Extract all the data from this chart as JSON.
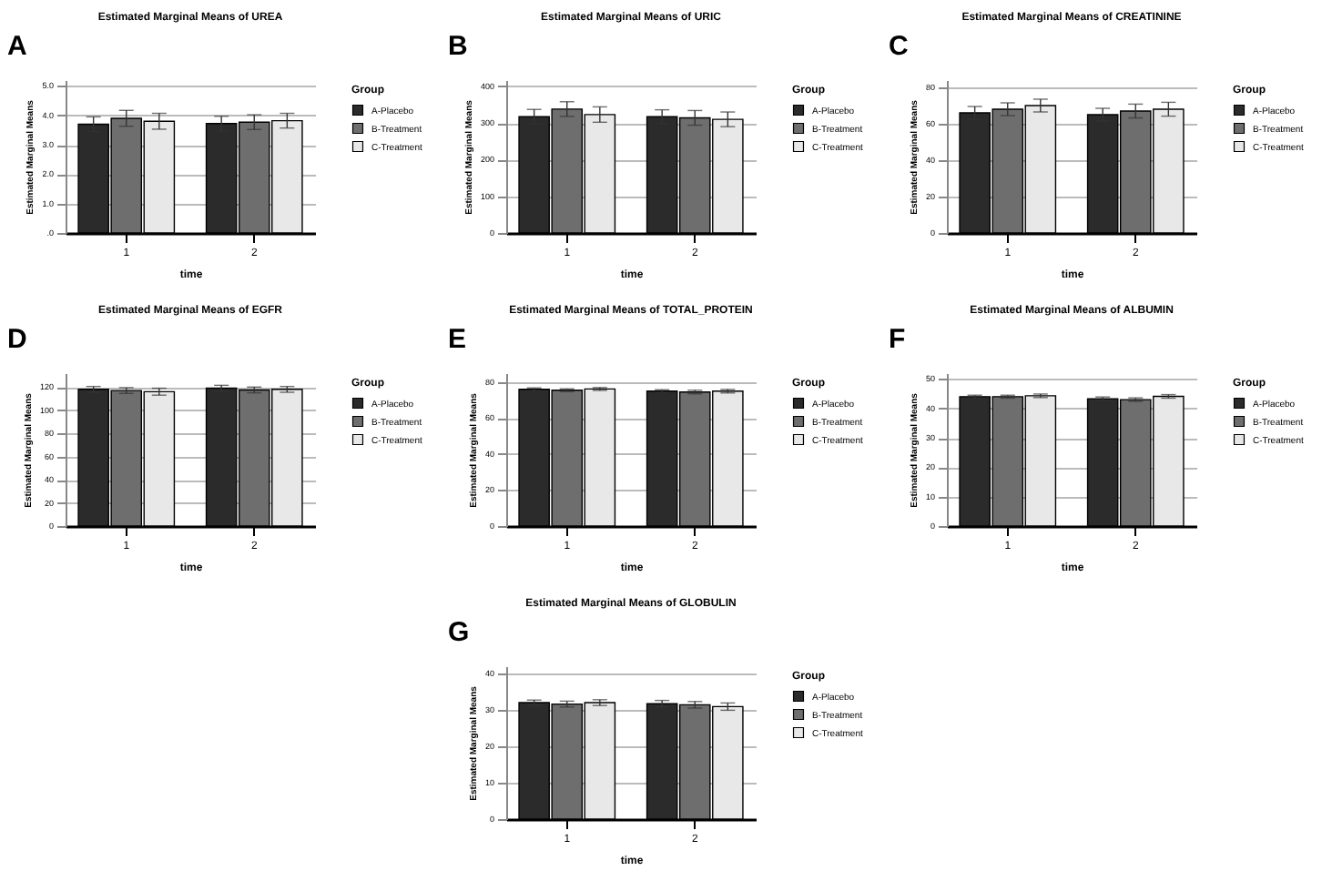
{
  "chart_data": [
    {
      "type": "bar",
      "title": "Estimated Marginal Means of UREA",
      "xlabel": "time",
      "ylabel": "Estimated Marginal Means",
      "legend_title": "Group",
      "annotations": [
        "A"
      ],
      "categories": [
        "1",
        "2"
      ],
      "ylim": [
        0,
        5.2
      ],
      "yticks": [
        {
          "value": 0,
          "label": ".0"
        },
        {
          "value": 1,
          "label": "1.0"
        },
        {
          "value": 2,
          "label": "2.0"
        },
        {
          "value": 3,
          "label": "3.0"
        },
        {
          "value": 4,
          "label": "4.0"
        },
        {
          "value": 5,
          "label": "5.0"
        }
      ],
      "grid": "y",
      "legend": "top right",
      "series": [
        {
          "name": "A-Placebo",
          "color": "#2b2b2b",
          "values": [
            3.7,
            3.72
          ],
          "errors": [
            0.25,
            0.25
          ]
        },
        {
          "name": "B-Treatment",
          "color": "#6e6e6e",
          "values": [
            3.9,
            3.77
          ],
          "errors": [
            0.27,
            0.25
          ]
        },
        {
          "name": "C-Treatment",
          "color": "#e8e8e8",
          "values": [
            3.8,
            3.82
          ],
          "errors": [
            0.27,
            0.25
          ]
        }
      ]
    },
    {
      "type": "bar",
      "title": "Estimated Marginal Means of URIC",
      "xlabel": "time",
      "ylabel": "Estimated Marginal Means",
      "legend_title": "Group",
      "annotations": [
        "B"
      ],
      "categories": [
        "1",
        "2"
      ],
      "ylim": [
        0,
        417
      ],
      "yticks": [
        0,
        100,
        200,
        300,
        400
      ],
      "grid": "y",
      "legend": "top right",
      "series": [
        {
          "name": "A-Placebo",
          "color": "#2b2b2b",
          "values": [
            317,
            317
          ],
          "errors": [
            20,
            19
          ]
        },
        {
          "name": "B-Treatment",
          "color": "#6e6e6e",
          "values": [
            338,
            314
          ],
          "errors": [
            20,
            20
          ]
        },
        {
          "name": "C-Treatment",
          "color": "#e8e8e8",
          "values": [
            323,
            310
          ],
          "errors": [
            21,
            20
          ]
        }
      ]
    },
    {
      "type": "bar",
      "title": "Estimated Marginal Means of CREATININE",
      "xlabel": "time",
      "ylabel": "Estimated Marginal Means",
      "legend_title": "Group",
      "annotations": [
        "C"
      ],
      "categories": [
        "1",
        "2"
      ],
      "ylim": [
        0,
        84
      ],
      "yticks": [
        0,
        20,
        40,
        60,
        80
      ],
      "grid": "y",
      "legend": "top right",
      "series": [
        {
          "name": "A-Placebo",
          "color": "#2b2b2b",
          "values": [
            66,
            65
          ],
          "errors": [
            3.5,
            3.5
          ]
        },
        {
          "name": "B-Treatment",
          "color": "#6e6e6e",
          "values": [
            68,
            67
          ],
          "errors": [
            3.5,
            3.8
          ]
        },
        {
          "name": "C-Treatment",
          "color": "#e8e8e8",
          "values": [
            70,
            68
          ],
          "errors": [
            3.5,
            3.8
          ]
        }
      ]
    },
    {
      "type": "bar",
      "title": "Estimated Marginal Means of EGFR",
      "xlabel": "time",
      "ylabel": "Estimated Marginal Means",
      "legend_title": "Group",
      "annotations": [
        "D"
      ],
      "categories": [
        "1",
        "2"
      ],
      "ylim": [
        0,
        132
      ],
      "yticks": [
        0,
        20,
        40,
        60,
        80,
        100,
        120
      ],
      "grid": "y",
      "legend": "top right",
      "series": [
        {
          "name": "A-Placebo",
          "color": "#2b2b2b",
          "values": [
            118,
            119
          ],
          "errors": [
            2.5,
            2.5
          ]
        },
        {
          "name": "B-Treatment",
          "color": "#6e6e6e",
          "values": [
            117,
            117.5
          ],
          "errors": [
            2.5,
            2.5
          ]
        },
        {
          "name": "C-Treatment",
          "color": "#e8e8e8",
          "values": [
            116,
            118
          ],
          "errors": [
            3,
            2.5
          ]
        }
      ]
    },
    {
      "type": "bar",
      "title": "Estimated Marginal Means of TOTAL_PROTEIN",
      "xlabel": "time",
      "ylabel": "Estimated Marginal Means",
      "legend_title": "Group",
      "annotations": [
        "E"
      ],
      "categories": [
        "1",
        "2"
      ],
      "ylim": [
        0,
        85
      ],
      "yticks": [
        0,
        20,
        40,
        60,
        80
      ],
      "grid": "y",
      "legend": "top right",
      "series": [
        {
          "name": "A-Placebo",
          "color": "#2b2b2b",
          "values": [
            76,
            75
          ],
          "errors": [
            0.8,
            0.8
          ]
        },
        {
          "name": "B-Treatment",
          "color": "#6e6e6e",
          "values": [
            75.5,
            74.5
          ],
          "errors": [
            0.8,
            1
          ]
        },
        {
          "name": "C-Treatment",
          "color": "#e8e8e8",
          "values": [
            76.2,
            75
          ],
          "errors": [
            0.8,
            1
          ]
        }
      ]
    },
    {
      "type": "bar",
      "title": "Estimated Marginal Means of ALBUMIN",
      "xlabel": "time",
      "ylabel": "Estimated Marginal Means",
      "legend_title": "Group",
      "annotations": [
        "F"
      ],
      "categories": [
        "1",
        "2"
      ],
      "ylim": [
        0,
        52
      ],
      "yticks": [
        0,
        10,
        20,
        30,
        40,
        50
      ],
      "grid": "y",
      "legend": "top right",
      "series": [
        {
          "name": "A-Placebo",
          "color": "#2b2b2b",
          "values": [
            44,
            43.3
          ],
          "errors": [
            0.5,
            0.6
          ]
        },
        {
          "name": "B-Treatment",
          "color": "#6e6e6e",
          "values": [
            44,
            43
          ],
          "errors": [
            0.5,
            0.6
          ]
        },
        {
          "name": "C-Treatment",
          "color": "#e8e8e8",
          "values": [
            44.3,
            44.1
          ],
          "errors": [
            0.6,
            0.6
          ]
        }
      ]
    },
    {
      "type": "bar",
      "title": "Estimated Marginal Means of GLOBULIN",
      "xlabel": "time",
      "ylabel": "Estimated Marginal Means",
      "legend_title": "Group",
      "annotations": [
        "G"
      ],
      "categories": [
        "1",
        "2"
      ],
      "ylim": [
        0,
        42
      ],
      "yticks": [
        0,
        10,
        20,
        30,
        40
      ],
      "grid": "y",
      "legend": "top right",
      "series": [
        {
          "name": "A-Placebo",
          "color": "#2b2b2b",
          "values": [
            32,
            31.7
          ],
          "errors": [
            0.7,
            0.9
          ]
        },
        {
          "name": "B-Treatment",
          "color": "#6e6e6e",
          "values": [
            31.6,
            31.4
          ],
          "errors": [
            0.8,
            0.9
          ]
        },
        {
          "name": "C-Treatment",
          "color": "#e8e8e8",
          "values": [
            32,
            30.9
          ],
          "errors": [
            0.8,
            1
          ]
        }
      ]
    }
  ]
}
